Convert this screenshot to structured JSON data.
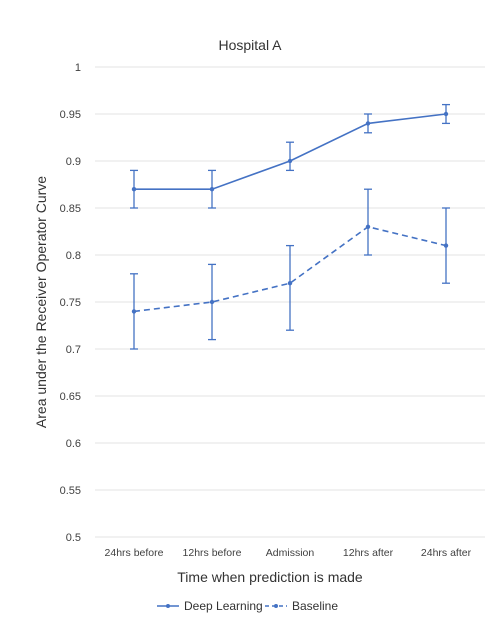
{
  "chart_data": {
    "type": "line",
    "title": "Hospital A",
    "xlabel": "Time when prediction is made",
    "ylabel": "Area under the Receiver  Operator Curve",
    "categories": [
      "24hrs before",
      "12hrs before",
      "Admission",
      "12hrs after",
      "24hrs after"
    ],
    "ylim": [
      0.5,
      1
    ],
    "yticks": [
      "0.5",
      "0.55",
      "0.6",
      "0.65",
      "0.7",
      "0.75",
      "0.8",
      "0.85",
      "0.9",
      "0.95",
      "1"
    ],
    "grid": true,
    "legend_position": "bottom",
    "series": [
      {
        "name": "Deep Learning",
        "values": [
          0.87,
          0.87,
          0.9,
          0.94,
          0.95
        ],
        "err_low": [
          0.85,
          0.85,
          0.89,
          0.93,
          0.94
        ],
        "err_high": [
          0.89,
          0.89,
          0.92,
          0.95,
          0.96
        ],
        "color": "#4472c4",
        "style": "solid"
      },
      {
        "name": "Baseline",
        "values": [
          0.74,
          0.75,
          0.77,
          0.83,
          0.81
        ],
        "err_low": [
          0.7,
          0.71,
          0.72,
          0.8,
          0.77
        ],
        "err_high": [
          0.78,
          0.79,
          0.81,
          0.87,
          0.85
        ],
        "color": "#4472c4",
        "style": "dashed"
      }
    ]
  }
}
